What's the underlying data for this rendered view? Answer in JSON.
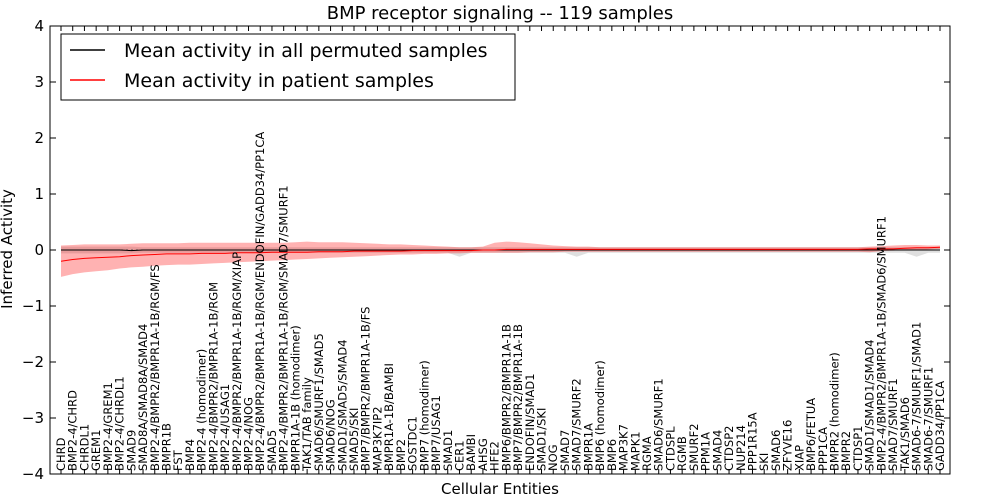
{
  "chart_data": {
    "type": "line",
    "title": "BMP receptor signaling -- 119 samples",
    "xlabel": "Cellular Entities",
    "ylabel": "Inferred Activity",
    "ylim": [
      -4,
      4
    ],
    "yticks": [
      "−4",
      "−3",
      "−2",
      "−1",
      "0",
      "1",
      "2",
      "3",
      "4"
    ],
    "ytick_values": [
      -4,
      -3,
      -2,
      -1,
      0,
      1,
      2,
      3,
      4
    ],
    "legend": {
      "position": "top-left",
      "entries": [
        {
          "label": "Mean activity in all permuted samples",
          "color": "#000000"
        },
        {
          "label": "Mean activity in patient samples",
          "color": "#ff0000"
        }
      ]
    },
    "categories": [
      "CHRD",
      "BMP2-4/CHRD",
      "CHRDL1",
      "GREM1",
      "BMP2-4/GREM1",
      "BMP2-4/CHRDL1",
      "SMAD9",
      "SMAD8A/SMAD8A/SMAD4",
      "BMP2-4/BMPR2/BMPR1A-1B/RGM/FS",
      "BMPR1B",
      "FST",
      "BMP4",
      "BMP2-4 (homodimer)",
      "BMP2-4/BMPR2/BMPR1A-1B/RGM",
      "BMP2-4/USAG1",
      "BMP2-4/BMPR2/BMPR1A-1B/RGM/XIAP",
      "BMP2-4/NOG",
      "BMP2-4/BMPR2/BMPR1A-1B/RGM/ENDOFIN/GADD34/PP1CA",
      "SMAD5",
      "BMP2-4/BMPR2/BMPR1A-1B/RGM/SMAD7/SMURF1",
      "BMPR1A-1B (homodimer)",
      "TAK1/TAB family",
      "SMAD6/SMURF1/SMAD5",
      "SMAD6/NOG",
      "SMAD1/SMAD5/SMAD4",
      "SMAD5/SKI",
      "BMP7/BMPR2/BMPR1A-1B/FS",
      "MAP3K7IP2",
      "BMPR1A-1B/BAMBI",
      "BMP2",
      "SOSTDC1",
      "BMP7 (homodimer)",
      "BMP7/USAG1",
      "SMAD1",
      "CER1",
      "BAMBI",
      "AHSG",
      "HFE2",
      "BMP6/BMPR2/BMPR1A-1B",
      "BMP7/BMPR2/BMPR1A-1B",
      "ENDOFIN/SMAD1",
      "SMAD1/SKI",
      "NOG",
      "SMAD7",
      "SMAD7/SMURF2",
      "BMPR1A",
      "BMP6 (homodimer)",
      "BMP6",
      "MAP3K7",
      "MAPK1",
      "RGMA",
      "SMAD6/SMURF1",
      "CTDSPL",
      "RGMB",
      "SMURF2",
      "PPM1A",
      "SMAD4",
      "CTDSP2",
      "NUP214",
      "PPP1R15A",
      "SKI",
      "SMAD6",
      "ZFYVE16",
      "XIAP",
      "BMP6/FETUA",
      "PPP1CA",
      "BMPR2 (homodimer)",
      "BMPR2",
      "CTDSP1",
      "SMAD1/SMAD1/SMAD4",
      "BMP2-4/BMPR2/BMPR1A-1B/SMAD6/SMURF1",
      "SMAD7/SMURF1",
      "TAK1/SMAD6",
      "SMAD6-7/SMURF1/SMAD1",
      "SMAD6-7/SMURF1",
      "GADD34/PP1CA"
    ],
    "series": [
      {
        "name": "Mean activity in all permuted samples",
        "color": "#000000",
        "values": [
          0.0,
          0.0,
          0.0,
          0.0,
          0.0,
          0.0,
          -0.01,
          0.0,
          0.0,
          0.0,
          0.0,
          0.0,
          0.0,
          0.0,
          0.0,
          0.0,
          0.0,
          0.0,
          0.0,
          0.0,
          0.0,
          0.0,
          0.0,
          0.0,
          0.0,
          0.0,
          0.0,
          0.0,
          0.0,
          0.0,
          0.0,
          0.0,
          0.0,
          0.0,
          0.0,
          0.0,
          0.0,
          0.0,
          0.0,
          0.0,
          0.0,
          0.0,
          0.0,
          0.0,
          0.0,
          0.0,
          0.0,
          0.0,
          0.0,
          0.0,
          0.0,
          0.0,
          0.0,
          0.0,
          0.0,
          0.0,
          0.0,
          0.0,
          0.0,
          0.0,
          0.0,
          0.0,
          0.0,
          0.0,
          0.0,
          0.0,
          0.0,
          0.0,
          0.0,
          0.0,
          0.0,
          0.0,
          0.0,
          0.0,
          0.0,
          0.0
        ],
        "band_low": [
          -0.06,
          -0.06,
          -0.06,
          -0.06,
          -0.06,
          -0.06,
          -0.06,
          -0.05,
          -0.05,
          -0.05,
          -0.05,
          -0.05,
          -0.05,
          -0.05,
          -0.05,
          -0.05,
          -0.05,
          -0.05,
          -0.05,
          -0.05,
          -0.05,
          -0.05,
          -0.05,
          -0.05,
          -0.05,
          -0.05,
          -0.05,
          -0.05,
          -0.05,
          -0.05,
          -0.05,
          -0.05,
          -0.05,
          -0.05,
          -0.12,
          -0.05,
          -0.05,
          -0.05,
          -0.05,
          -0.05,
          -0.05,
          -0.05,
          -0.05,
          -0.05,
          -0.12,
          -0.05,
          -0.05,
          -0.05,
          -0.05,
          -0.05,
          -0.05,
          -0.05,
          -0.05,
          -0.05,
          -0.05,
          -0.05,
          -0.05,
          -0.05,
          -0.05,
          -0.05,
          -0.05,
          -0.05,
          -0.05,
          -0.05,
          -0.05,
          -0.05,
          -0.05,
          -0.05,
          -0.05,
          -0.05,
          -0.05,
          -0.05,
          -0.05,
          -0.12,
          -0.05,
          -0.05
        ],
        "band_high": [
          0.06,
          0.06,
          0.06,
          0.06,
          0.06,
          0.06,
          0.06,
          0.05,
          0.05,
          0.05,
          0.05,
          0.05,
          0.05,
          0.05,
          0.05,
          0.05,
          0.05,
          0.05,
          0.05,
          0.05,
          0.05,
          0.05,
          0.05,
          0.05,
          0.05,
          0.05,
          0.05,
          0.05,
          0.05,
          0.05,
          0.05,
          0.05,
          0.05,
          0.05,
          0.05,
          0.05,
          0.05,
          0.05,
          0.05,
          0.05,
          0.05,
          0.05,
          0.05,
          0.05,
          0.05,
          0.05,
          0.05,
          0.05,
          0.05,
          0.05,
          0.05,
          0.05,
          0.05,
          0.05,
          0.05,
          0.05,
          0.05,
          0.05,
          0.05,
          0.05,
          0.05,
          0.05,
          0.05,
          0.05,
          0.05,
          0.05,
          0.05,
          0.05,
          0.05,
          0.05,
          0.05,
          0.05,
          0.05,
          0.05,
          0.05,
          0.05
        ]
      },
      {
        "name": "Mean activity in patient samples",
        "color": "#ff0000",
        "values": [
          -0.2,
          -0.17,
          -0.15,
          -0.14,
          -0.13,
          -0.12,
          -0.1,
          -0.09,
          -0.08,
          -0.07,
          -0.07,
          -0.07,
          -0.06,
          -0.06,
          -0.06,
          -0.05,
          -0.05,
          -0.05,
          -0.04,
          -0.04,
          -0.04,
          -0.04,
          -0.03,
          -0.03,
          -0.03,
          -0.02,
          -0.02,
          -0.02,
          -0.02,
          -0.02,
          -0.01,
          -0.01,
          -0.01,
          -0.01,
          -0.01,
          -0.01,
          0.0,
          0.0,
          0.01,
          0.01,
          0.01,
          0.01,
          0.01,
          0.01,
          0.01,
          0.01,
          0.01,
          0.01,
          0.01,
          0.01,
          0.01,
          0.01,
          0.01,
          0.01,
          0.01,
          0.01,
          0.01,
          0.01,
          0.01,
          0.01,
          0.01,
          0.01,
          0.01,
          0.01,
          0.01,
          0.01,
          0.01,
          0.01,
          0.01,
          0.02,
          0.02,
          0.02,
          0.03,
          0.04,
          0.04,
          0.05
        ],
        "band_low": [
          -0.48,
          -0.43,
          -0.4,
          -0.38,
          -0.36,
          -0.33,
          -0.31,
          -0.3,
          -0.28,
          -0.27,
          -0.26,
          -0.26,
          -0.25,
          -0.24,
          -0.23,
          -0.22,
          -0.21,
          -0.2,
          -0.19,
          -0.18,
          -0.17,
          -0.16,
          -0.15,
          -0.14,
          -0.13,
          -0.12,
          -0.11,
          -0.1,
          -0.09,
          -0.08,
          -0.08,
          -0.07,
          -0.07,
          -0.06,
          -0.06,
          -0.05,
          -0.05,
          -0.05,
          -0.05,
          -0.05,
          -0.04,
          -0.04,
          -0.04,
          -0.03,
          -0.03,
          -0.03,
          -0.03,
          -0.03,
          -0.03,
          -0.03,
          -0.03,
          -0.03,
          -0.03,
          -0.03,
          -0.03,
          -0.03,
          -0.03,
          -0.03,
          -0.03,
          -0.03,
          -0.03,
          -0.03,
          -0.03,
          -0.03,
          -0.03,
          -0.03,
          -0.03,
          -0.03,
          -0.03,
          -0.04,
          -0.02,
          -0.01,
          0.0,
          0.0,
          0.01,
          0.02
        ],
        "band_high": [
          0.08,
          0.09,
          0.1,
          0.1,
          0.1,
          0.1,
          0.11,
          0.12,
          0.12,
          0.12,
          0.12,
          0.13,
          0.13,
          0.13,
          0.13,
          0.13,
          0.13,
          0.13,
          0.13,
          0.13,
          0.14,
          0.15,
          0.14,
          0.14,
          0.14,
          0.13,
          0.12,
          0.11,
          0.1,
          0.1,
          0.09,
          0.08,
          0.07,
          0.06,
          0.05,
          0.05,
          0.06,
          0.13,
          0.15,
          0.14,
          0.12,
          0.1,
          0.08,
          0.07,
          0.06,
          0.06,
          0.05,
          0.05,
          0.05,
          0.05,
          0.05,
          0.05,
          0.05,
          0.05,
          0.05,
          0.05,
          0.05,
          0.05,
          0.05,
          0.05,
          0.05,
          0.05,
          0.05,
          0.05,
          0.05,
          0.05,
          0.05,
          0.05,
          0.05,
          0.06,
          0.07,
          0.08,
          0.09,
          0.09,
          0.08,
          0.08
        ]
      }
    ]
  }
}
